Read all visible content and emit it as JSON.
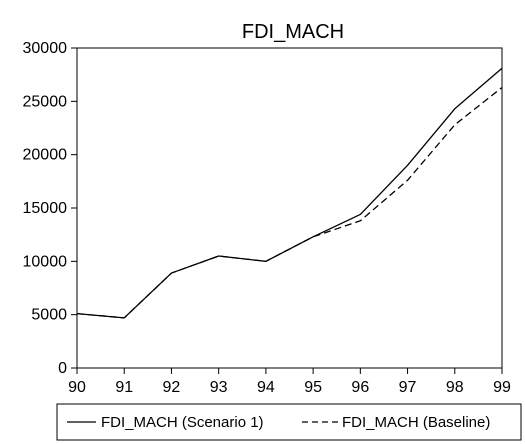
{
  "chart_data": {
    "type": "line",
    "title": "FDI_MACH",
    "x": [
      "90",
      "91",
      "92",
      "93",
      "94",
      "95",
      "96",
      "97",
      "98",
      "99"
    ],
    "xlabel": "",
    "ylabel": "",
    "ylim": [
      0,
      30000
    ],
    "yticks": [
      "0",
      "5000",
      "10000",
      "15000",
      "20000",
      "25000",
      "30000"
    ],
    "grid": false,
    "legend_position": "bottom",
    "series": [
      {
        "name": "FDI_MACH (Scenario 1)",
        "style": "solid",
        "color": "#000000",
        "values": [
          5100,
          4700,
          8900,
          10500,
          10000,
          12300,
          14400,
          19000,
          24300,
          28100
        ]
      },
      {
        "name": "FDI_MACH (Baseline)",
        "style": "dashed",
        "color": "#000000",
        "values": [
          5100,
          4700,
          8900,
          10500,
          10000,
          12300,
          13800,
          17600,
          22800,
          26300
        ]
      }
    ]
  }
}
